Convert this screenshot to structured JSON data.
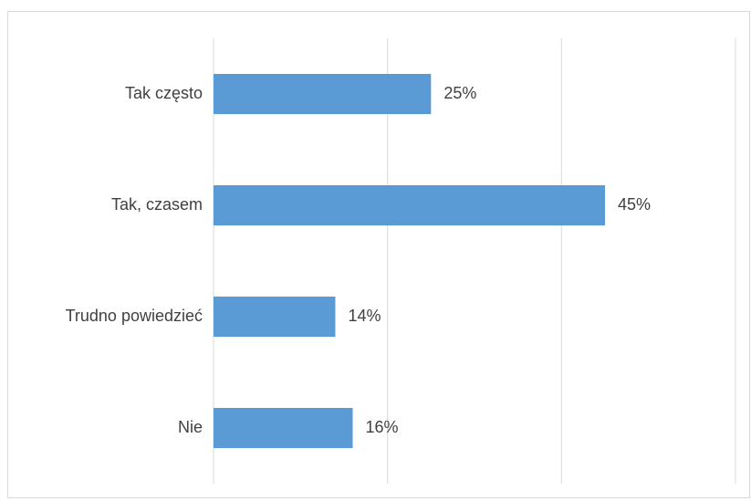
{
  "chart_data": {
    "type": "bar",
    "orientation": "horizontal",
    "categories": [
      "Tak często",
      "Tak, czasem",
      "Trudno powiedzieć",
      "Nie"
    ],
    "values": [
      25,
      45,
      14,
      16
    ],
    "data_labels": [
      "25%",
      "45%",
      "14%",
      "16%"
    ],
    "value_unit": "%",
    "xlim": [
      0,
      60
    ],
    "grid": true,
    "title": "",
    "xlabel": "",
    "ylabel": "",
    "legend": "none",
    "colors": {
      "bar": "#5b9bd5",
      "grid": "#d9d9d9",
      "text": "#404040"
    }
  }
}
